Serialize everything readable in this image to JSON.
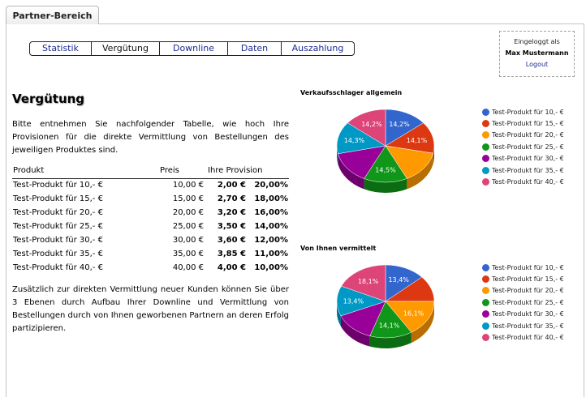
{
  "tab": {
    "label": "Partner-Bereich"
  },
  "nav": {
    "items": [
      {
        "label": "Statistik",
        "active": false
      },
      {
        "label": "Vergütung",
        "active": true
      },
      {
        "label": "Downline",
        "active": false
      },
      {
        "label": "Daten",
        "active": false
      },
      {
        "label": "Auszahlung",
        "active": false
      }
    ]
  },
  "login": {
    "status": "Eingeloggt als",
    "user": "Max Mustermann",
    "logout": "Logout"
  },
  "page": {
    "title": "Vergütung",
    "intro": "Bitte entnehmen Sie nachfolgender Tabelle, wie hoch Ihre Provisionen für die direkte Vermittlung von Bestellungen des jeweiligen Produktes sind.",
    "outro": "Zusätzlich zur direkten Vermittlung neuer Kunden können Sie über 3 Ebenen durch Aufbau Ihrer Downline und Vermittlung von Bestellungen durch von Ihnen geworbenen Partnern an deren Erfolg partizipieren."
  },
  "table": {
    "headers": {
      "product": "Produkt",
      "price": "Preis",
      "provision": "Ihre Provision"
    },
    "rows": [
      {
        "product": "Test-Produkt für 10,- €",
        "price": "10,00 €",
        "amount": "2,00 €",
        "percent": "20,00%"
      },
      {
        "product": "Test-Produkt für 15,- €",
        "price": "15,00 €",
        "amount": "2,70 €",
        "percent": "18,00%"
      },
      {
        "product": "Test-Produkt für 20,- €",
        "price": "20,00 €",
        "amount": "3,20 €",
        "percent": "16,00%"
      },
      {
        "product": "Test-Produkt für 25,- €",
        "price": "25,00 €",
        "amount": "3,50 €",
        "percent": "14,00%"
      },
      {
        "product": "Test-Produkt für 30,- €",
        "price": "30,00 €",
        "amount": "3,60 €",
        "percent": "12,00%"
      },
      {
        "product": "Test-Produkt für 35,- €",
        "price": "35,00 €",
        "amount": "3,85 €",
        "percent": "11,00%"
      },
      {
        "product": "Test-Produkt für 40,- €",
        "price": "40,00 €",
        "amount": "4,00 €",
        "percent": "10,00%"
      }
    ]
  },
  "colors": [
    "#3366cc",
    "#dc3912",
    "#ff9900",
    "#109618",
    "#990099",
    "#0099c6",
    "#dd4477"
  ],
  "chart_data": [
    {
      "type": "pie",
      "title": "Verkaufsschlager allgemein",
      "categories": [
        "Test-Produkt für 10,- €",
        "Test-Produkt für 15,- €",
        "Test-Produkt für 20,- €",
        "Test-Produkt für 25,- €",
        "Test-Produkt für 30,- €",
        "Test-Produkt für 35,- €",
        "Test-Produkt für 40,- €"
      ],
      "values": [
        14.2,
        14.1,
        14.5,
        14.5,
        14.3,
        14.3,
        14.2
      ],
      "labels": [
        "14,2%",
        "14,1%",
        "",
        "14,5%",
        "",
        "14,3%",
        "14,2%"
      ],
      "legend": "right"
    },
    {
      "type": "pie",
      "title": "Von Ihnen vermittelt",
      "categories": [
        "Test-Produkt für 10,- €",
        "Test-Produkt für 15,- €",
        "Test-Produkt für 20,- €",
        "Test-Produkt für 25,- €",
        "Test-Produkt für 30,- €",
        "Test-Produkt für 35,- €",
        "Test-Produkt für 40,- €"
      ],
      "values": [
        13.4,
        11.6,
        16.1,
        14.1,
        13.3,
        13.4,
        18.1
      ],
      "labels": [
        "13,4%",
        "",
        "16,1%",
        "14,1%",
        "",
        "13,4%",
        "18,1%"
      ],
      "legend": "right"
    }
  ]
}
